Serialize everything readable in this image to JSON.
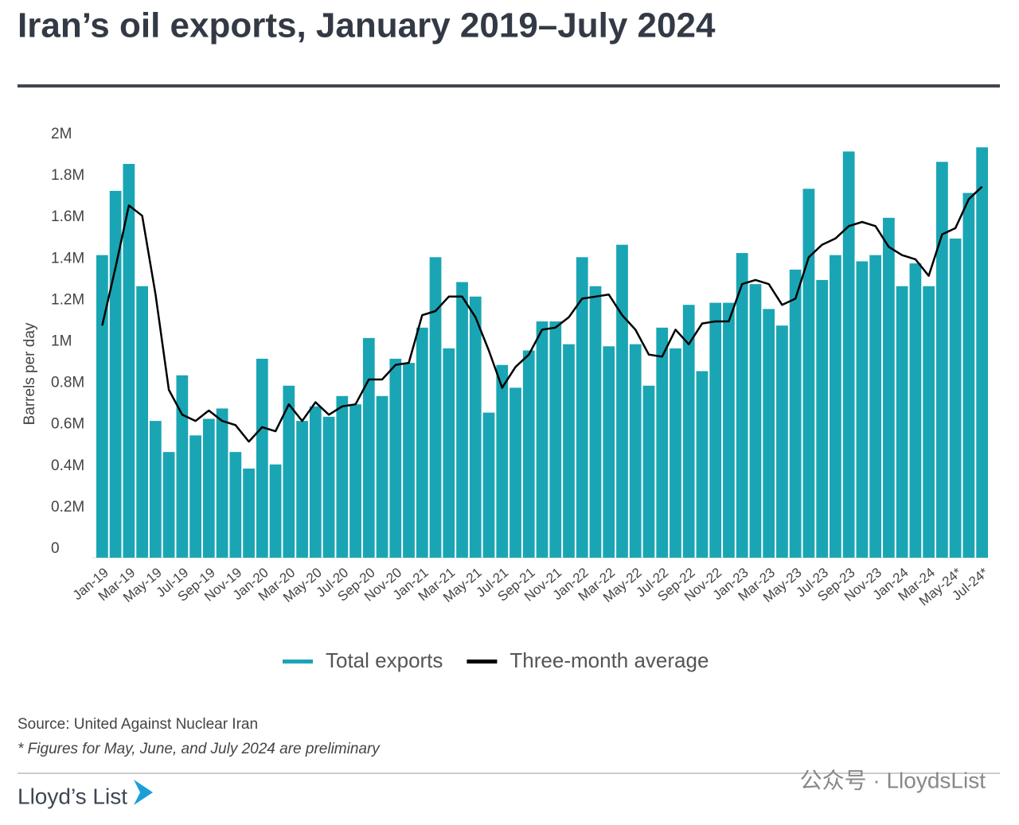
{
  "chart_data": {
    "type": "bar_line",
    "title": "Iran’s oil exports, January 2019–July 2024",
    "ylabel": "Barrels per day",
    "categories": [
      "Jan-19",
      null,
      "Mar-19",
      null,
      "May-19",
      null,
      "Jul-19",
      null,
      "Sep-19",
      null,
      "Nov-19",
      null,
      "Jan-20",
      null,
      "Mar-20",
      null,
      "May-20",
      null,
      "Jul-20",
      null,
      "Sep-20",
      null,
      "Nov-20",
      null,
      "Jan-21",
      null,
      "Mar-21",
      null,
      "May-21",
      null,
      "Jul-21",
      null,
      "Sep-21",
      null,
      "Nov-21",
      null,
      "Jan-22",
      null,
      "Mar-22",
      null,
      "May-22",
      null,
      "Jul-22",
      null,
      "Sep-22",
      null,
      "Nov-22",
      null,
      "Jan-23",
      null,
      "Mar-23",
      null,
      "May-23",
      null,
      "Jul-23",
      null,
      "Sep-23",
      null,
      "Nov-23",
      null,
      "Jan-24",
      null,
      "Mar-24",
      null,
      "May-24*",
      null,
      "Jul-24*"
    ],
    "series": [
      {
        "name": "Total exports",
        "color": "#1aa5b4",
        "kind": "bar",
        "values": [
          1.46,
          1.77,
          1.9,
          1.31,
          0.66,
          0.51,
          0.88,
          0.59,
          0.67,
          0.72,
          0.51,
          0.43,
          0.96,
          0.45,
          0.83,
          0.66,
          0.73,
          0.68,
          0.78,
          0.74,
          1.06,
          0.78,
          0.96,
          0.94,
          1.11,
          1.45,
          1.01,
          1.33,
          1.26,
          0.7,
          0.93,
          0.82,
          1.0,
          1.14,
          1.14,
          1.03,
          1.45,
          1.31,
          1.02,
          1.51,
          1.03,
          0.83,
          1.11,
          1.01,
          1.22,
          0.9,
          1.23,
          1.23,
          1.47,
          1.32,
          1.2,
          1.12,
          1.39,
          1.78,
          1.34,
          1.46,
          1.96,
          1.43,
          1.46,
          1.64,
          1.31,
          1.42,
          1.31,
          1.91,
          1.54,
          1.76,
          1.98
        ]
      },
      {
        "name": "Three-month average",
        "color": "#000000",
        "kind": "line",
        "values": [
          1.12,
          1.4,
          1.7,
          1.65,
          1.27,
          0.81,
          0.69,
          0.66,
          0.71,
          0.66,
          0.64,
          0.56,
          0.63,
          0.61,
          0.74,
          0.66,
          0.75,
          0.69,
          0.73,
          0.74,
          0.86,
          0.86,
          0.93,
          0.94,
          1.17,
          1.19,
          1.26,
          1.26,
          1.16,
          1.0,
          0.82,
          0.92,
          0.98,
          1.1,
          1.11,
          1.16,
          1.25,
          1.26,
          1.27,
          1.17,
          1.1,
          0.98,
          0.97,
          1.1,
          1.03,
          1.13,
          1.14,
          1.14,
          1.32,
          1.34,
          1.32,
          1.22,
          1.25,
          1.45,
          1.51,
          1.54,
          1.6,
          1.62,
          1.6,
          1.5,
          1.46,
          1.44,
          1.36,
          1.56,
          1.59,
          1.73,
          1.79
        ]
      }
    ],
    "ylim": [
      0,
      2
    ],
    "yticks": [
      0,
      {
        "value": 0.2,
        "label": "0.2M"
      },
      {
        "value": 0.4,
        "label": "0.4M"
      },
      {
        "value": 0.6,
        "label": "0.6M"
      },
      {
        "value": 0.8,
        "label": "0.8M"
      },
      {
        "value": 1,
        "label": "1M"
      },
      {
        "value": 1.2,
        "label": "1.2M"
      },
      {
        "value": 1.4,
        "label": "1.4M"
      },
      {
        "value": 1.6,
        "label": "1.6M"
      },
      {
        "value": 1.8,
        "label": "1.8M"
      },
      {
        "value": 2,
        "label": "2M"
      }
    ],
    "grid": false,
    "legend": "bottom",
    "source": "Source: United Against Nuclear Iran",
    "note": "* Figures for May, June, and July 2024 are preliminary",
    "brand": "Lloyd’s List",
    "watermark": "公众号 · LloydsList"
  }
}
